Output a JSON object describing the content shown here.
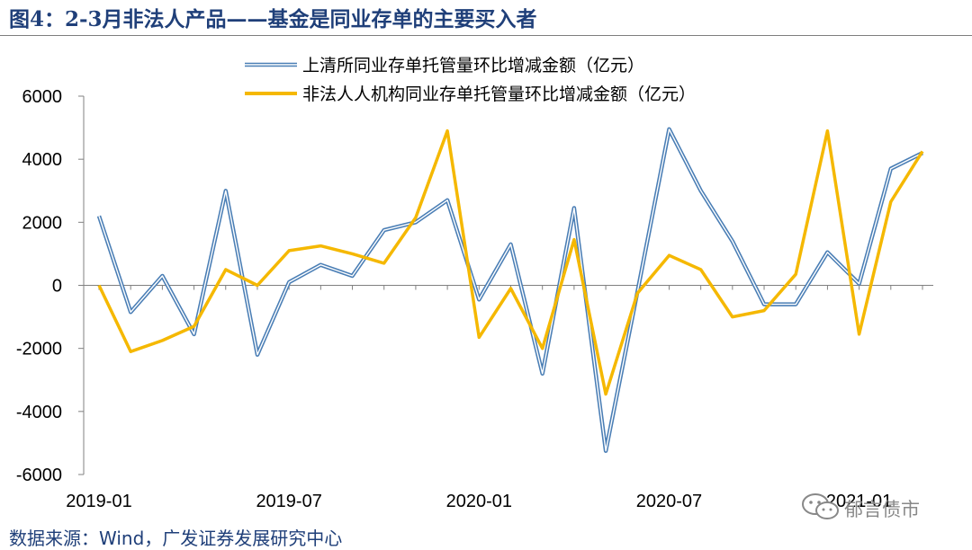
{
  "header": {
    "title": "图4：2-3月非法人产品——基金是同业存单的主要买入者"
  },
  "footer": {
    "source": "数据来源：Wind，广发证券发展研究中心"
  },
  "watermark": {
    "text": "郁言债市",
    "icon": "wechat-icon"
  },
  "chart_data": {
    "type": "line",
    "title": "",
    "xlabel": "",
    "ylabel": "",
    "ylim": [
      -6000,
      6000
    ],
    "yticks": [
      -6000,
      -4000,
      -2000,
      0,
      2000,
      4000,
      6000
    ],
    "ytick_labels": [
      "-6000",
      "-4000",
      "-2000",
      "0",
      "2000",
      "4000",
      "6000"
    ],
    "x": [
      "2019-01",
      "2019-02",
      "2019-03",
      "2019-04",
      "2019-05",
      "2019-06",
      "2019-07",
      "2019-08",
      "2019-09",
      "2019-10",
      "2019-11",
      "2019-12",
      "2020-01",
      "2020-02",
      "2020-03",
      "2020-04",
      "2020-05",
      "2020-06",
      "2020-07",
      "2020-08",
      "2020-09",
      "2020-10",
      "2020-11",
      "2020-12",
      "2021-01",
      "2021-02",
      "2021-03"
    ],
    "xtick_labels": [
      "2019-01",
      "2019-07",
      "2020-01",
      "2020-07",
      "2021-01"
    ],
    "grid": false,
    "legend_position": "top-right",
    "series": [
      {
        "name": "上清所同业存单托管量环比增减金额（亿元）",
        "color": "#4a7eb5",
        "style": "double-line",
        "values": [
          2200,
          -850,
          300,
          -1550,
          3000,
          -2200,
          100,
          650,
          300,
          1750,
          2000,
          2700,
          -450,
          1300,
          -2800,
          2450,
          -5250,
          -200,
          4950,
          3000,
          1400,
          -600,
          -600,
          1050,
          50,
          3700,
          4200
        ]
      },
      {
        "name": "非法人人机构同业存单托管量环比增减金额（亿元）",
        "color": "#f5b800",
        "style": "solid",
        "values": [
          0,
          -2100,
          -1750,
          -1300,
          500,
          0,
          1100,
          1250,
          1000,
          700,
          2150,
          4900,
          -1650,
          -100,
          -2000,
          1450,
          -3450,
          -250,
          950,
          500,
          -1000,
          -800,
          350,
          4900,
          -1550,
          2650,
          4250
        ]
      }
    ]
  }
}
